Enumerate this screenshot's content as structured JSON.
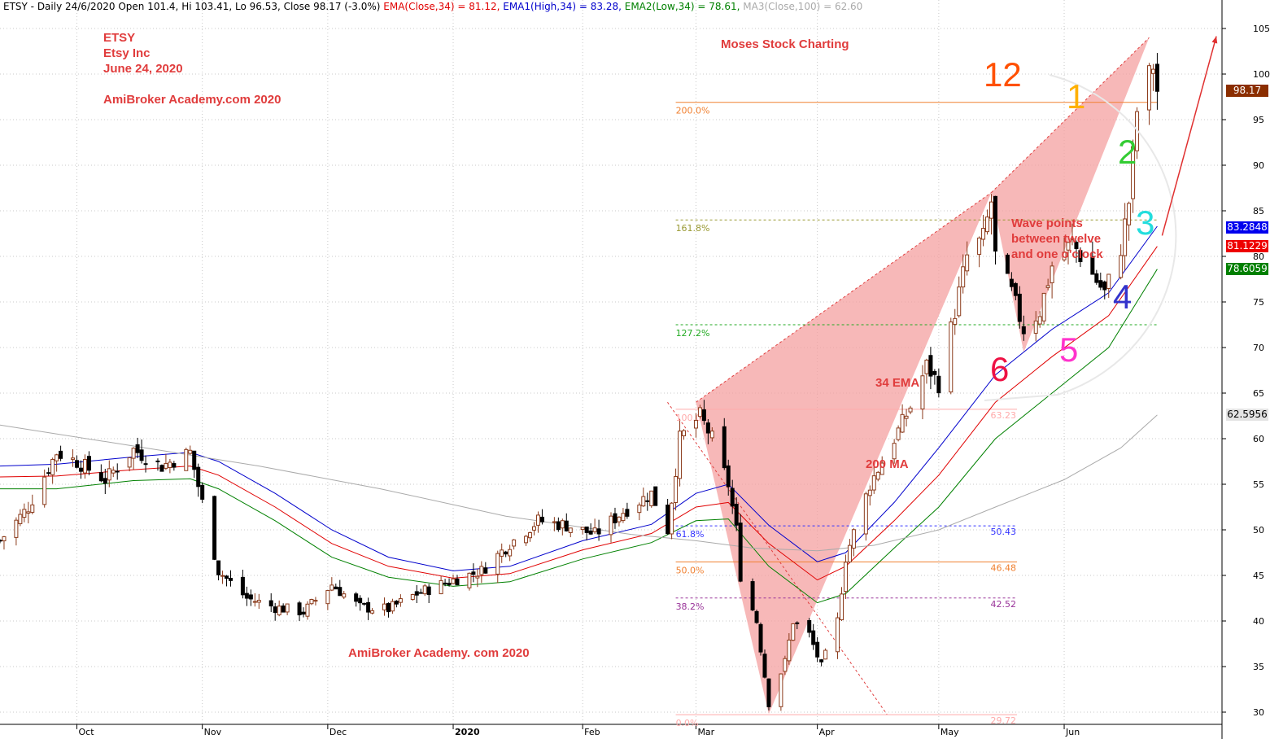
{
  "header": {
    "symbol": "ETSY - Daily 24/6/2020 Open 101.4, Hi 103.41, Lo 96.53, Close 98.17 (-3.0%)",
    "ema": "EMA(Close,34) = 81.12,",
    "ema1": "EMA1(High,34) = 83.28,",
    "ema2": "EMA2(Low,34) = 78.61,",
    "ma3": "MA3(Close,100) = 62.60",
    "colors": {
      "ema": "#e00000",
      "ema1": "#0000cc",
      "ema2": "#008000",
      "ma3": "#aaaaaa"
    }
  },
  "annotations": {
    "ticker": "ETSY",
    "company": "Etsy Inc",
    "date": "June 24, 2020",
    "site_top": "AmiBroker Academy.com  2020",
    "site_bottom": "AmiBroker Academy. com  2020",
    "watermark": "Moses Stock Charting",
    "wave_note_1": "Wave points",
    "wave_note_2": "between twelve",
    "wave_note_3": "and one o'clock",
    "ema_label": "34 EMA",
    "ma_label": "200 MA",
    "clock": [
      {
        "n": "12",
        "color": "#ff5000"
      },
      {
        "n": "1",
        "color": "#ffb000"
      },
      {
        "n": "2",
        "color": "#33cc33"
      },
      {
        "n": "3",
        "color": "#22dddd"
      },
      {
        "n": "4",
        "color": "#3333cc"
      },
      {
        "n": "5",
        "color": "#ff33cc"
      },
      {
        "n": "6",
        "color": "#ee1144"
      }
    ]
  },
  "price_tags": [
    {
      "label": "98.17",
      "bg": "#8b2e00",
      "fg": "#ffffff",
      "price": 98.17
    },
    {
      "label": "83.2848",
      "bg": "#0000ee",
      "fg": "#ffffff",
      "price": 83.28
    },
    {
      "label": "81.1229",
      "bg": "#ee0000",
      "fg": "#ffffff",
      "price": 81.12
    },
    {
      "label": "78.6059",
      "bg": "#008000",
      "fg": "#ffffff",
      "price": 78.61
    },
    {
      "label": "62.5956",
      "bg": "#e4e4e4",
      "fg": "#000000",
      "price": 62.6
    }
  ],
  "chart_data": {
    "type": "candlestick",
    "title": "",
    "xlabel": "",
    "ylabel": "",
    "ylim": [
      29.5,
      107
    ],
    "y_ticks": [
      30,
      35,
      40,
      45,
      50,
      55,
      60,
      65,
      70,
      75,
      80,
      85,
      90,
      95,
      100,
      105
    ],
    "grid": true,
    "x_axis": {
      "start": "2019-09-12",
      "end": "2020-07-10",
      "month_labels": [
        {
          "label": "Oct",
          "date": "2019-10-01"
        },
        {
          "label": "Nov",
          "date": "2019-11-01"
        },
        {
          "label": "Dec",
          "date": "2019-12-02"
        },
        {
          "label": "2020",
          "date": "2020-01-02",
          "bold": true
        },
        {
          "label": "Feb",
          "date": "2020-02-03"
        },
        {
          "label": "Mar",
          "date": "2020-03-02"
        },
        {
          "label": "Apr",
          "date": "2020-04-01"
        },
        {
          "label": "May",
          "date": "2020-05-01"
        },
        {
          "label": "Jun",
          "date": "2020-06-01"
        }
      ]
    },
    "close_path": [
      [
        "2019-09-12",
        48.8
      ],
      [
        "2019-09-19",
        52.5
      ],
      [
        "2019-09-26",
        58.5
      ],
      [
        "2019-10-01",
        57.5
      ],
      [
        "2019-10-08",
        55.5
      ],
      [
        "2019-10-15",
        58.8
      ],
      [
        "2019-10-22",
        57.0
      ],
      [
        "2019-10-29",
        58.5
      ],
      [
        "2019-11-01",
        53.0
      ],
      [
        "2019-11-05",
        45.5
      ],
      [
        "2019-11-12",
        42.5
      ],
      [
        "2019-11-19",
        41.5
      ],
      [
        "2019-11-26",
        41.0
      ],
      [
        "2019-12-03",
        44.0
      ],
      [
        "2019-12-10",
        41.5
      ],
      [
        "2019-12-17",
        41.3
      ],
      [
        "2019-12-24",
        43.0
      ],
      [
        "2020-01-02",
        44.5
      ],
      [
        "2020-01-09",
        45.5
      ],
      [
        "2020-01-16",
        48.5
      ],
      [
        "2020-01-23",
        51.0
      ],
      [
        "2020-01-30",
        50.5
      ],
      [
        "2020-02-06",
        49.5
      ],
      [
        "2020-02-13",
        52.0
      ],
      [
        "2020-02-20",
        54.0
      ],
      [
        "2020-02-24",
        50.0
      ],
      [
        "2020-02-27",
        60.0
      ],
      [
        "2020-03-03",
        62.5
      ],
      [
        "2020-03-06",
        60.0
      ],
      [
        "2020-03-10",
        55.0
      ],
      [
        "2020-03-12",
        50.0
      ],
      [
        "2020-03-13",
        45.0
      ],
      [
        "2020-03-17",
        40.0
      ],
      [
        "2020-03-19",
        34.0
      ],
      [
        "2020-03-20",
        31.0
      ],
      [
        "2020-03-24",
        35.5
      ],
      [
        "2020-03-26",
        40.0
      ],
      [
        "2020-03-30",
        38.5
      ],
      [
        "2020-04-02",
        35.0
      ],
      [
        "2020-04-06",
        40.0
      ],
      [
        "2020-04-08",
        47.0
      ],
      [
        "2020-04-14",
        55.0
      ],
      [
        "2020-04-20",
        60.0
      ],
      [
        "2020-04-24",
        63.5
      ],
      [
        "2020-04-28",
        68.0
      ],
      [
        "2020-05-01",
        66.0
      ],
      [
        "2020-05-05",
        74.0
      ],
      [
        "2020-05-08",
        80.0
      ],
      [
        "2020-05-12",
        82.0
      ],
      [
        "2020-05-14",
        86.0
      ],
      [
        "2020-05-15",
        80.0
      ],
      [
        "2020-05-19",
        76.0
      ],
      [
        "2020-05-22",
        72.0
      ],
      [
        "2020-05-26",
        74.0
      ],
      [
        "2020-05-29",
        79.0
      ],
      [
        "2020-06-03",
        81.5
      ],
      [
        "2020-06-08",
        78.0
      ],
      [
        "2020-06-11",
        76.0
      ],
      [
        "2020-06-15",
        81.0
      ],
      [
        "2020-06-17",
        86.0
      ],
      [
        "2020-06-19",
        96.0
      ],
      [
        "2020-06-23",
        101.0
      ],
      [
        "2020-06-24",
        98.17
      ]
    ],
    "series": [
      {
        "name": "EMA(Close,34)",
        "color": "#e00000",
        "points": [
          [
            "2019-09-12",
            55.8
          ],
          [
            "2019-09-26",
            55.9
          ],
          [
            "2019-10-15",
            56.6
          ],
          [
            "2019-10-29",
            57.0
          ],
          [
            "2019-11-05",
            56.0
          ],
          [
            "2019-11-19",
            52.5
          ],
          [
            "2019-12-03",
            48.5
          ],
          [
            "2019-12-17",
            46.0
          ],
          [
            "2020-01-02",
            44.7
          ],
          [
            "2020-01-16",
            45.2
          ],
          [
            "2020-02-03",
            47.8
          ],
          [
            "2020-02-20",
            49.6
          ],
          [
            "2020-03-02",
            52.5
          ],
          [
            "2020-03-10",
            53.0
          ],
          [
            "2020-03-20",
            48.5
          ],
          [
            "2020-04-01",
            44.5
          ],
          [
            "2020-04-08",
            46.0
          ],
          [
            "2020-04-20",
            51.0
          ],
          [
            "2020-05-01",
            56.0
          ],
          [
            "2020-05-15",
            64.0
          ],
          [
            "2020-05-29",
            69.0
          ],
          [
            "2020-06-12",
            73.5
          ],
          [
            "2020-06-24",
            81.1
          ]
        ]
      },
      {
        "name": "EMA1(High,34)",
        "color": "#0000cc",
        "points": [
          [
            "2019-09-12",
            57.0
          ],
          [
            "2019-09-26",
            57.2
          ],
          [
            "2019-10-15",
            58.0
          ],
          [
            "2019-10-29",
            58.5
          ],
          [
            "2019-11-05",
            57.5
          ],
          [
            "2019-11-19",
            54.0
          ],
          [
            "2019-12-03",
            50.0
          ],
          [
            "2019-12-17",
            47.0
          ],
          [
            "2020-01-02",
            45.5
          ],
          [
            "2020-01-16",
            46.0
          ],
          [
            "2020-02-03",
            48.8
          ],
          [
            "2020-02-20",
            50.6
          ],
          [
            "2020-03-02",
            54.0
          ],
          [
            "2020-03-10",
            55.0
          ],
          [
            "2020-03-20",
            50.5
          ],
          [
            "2020-04-01",
            46.5
          ],
          [
            "2020-04-08",
            47.5
          ],
          [
            "2020-04-20",
            53.0
          ],
          [
            "2020-05-01",
            59.0
          ],
          [
            "2020-05-15",
            67.0
          ],
          [
            "2020-05-29",
            72.0
          ],
          [
            "2020-06-12",
            76.0
          ],
          [
            "2020-06-24",
            83.3
          ]
        ]
      },
      {
        "name": "EMA2(Low,34)",
        "color": "#008000",
        "points": [
          [
            "2019-09-12",
            54.5
          ],
          [
            "2019-09-26",
            54.5
          ],
          [
            "2019-10-15",
            55.4
          ],
          [
            "2019-10-29",
            55.6
          ],
          [
            "2019-11-05",
            54.5
          ],
          [
            "2019-11-19",
            51.0
          ],
          [
            "2019-12-03",
            47.0
          ],
          [
            "2019-12-17",
            44.8
          ],
          [
            "2020-01-02",
            43.8
          ],
          [
            "2020-01-16",
            44.3
          ],
          [
            "2020-02-03",
            46.8
          ],
          [
            "2020-02-20",
            48.6
          ],
          [
            "2020-03-02",
            51.0
          ],
          [
            "2020-03-10",
            51.2
          ],
          [
            "2020-03-20",
            46.0
          ],
          [
            "2020-04-01",
            42.0
          ],
          [
            "2020-04-08",
            43.0
          ],
          [
            "2020-04-20",
            48.0
          ],
          [
            "2020-05-01",
            52.5
          ],
          [
            "2020-05-15",
            60.0
          ],
          [
            "2020-05-29",
            65.0
          ],
          [
            "2020-06-12",
            70.0
          ],
          [
            "2020-06-24",
            78.6
          ]
        ]
      },
      {
        "name": "MA3(Close,100)",
        "color": "#aaaaaa",
        "points": [
          [
            "2019-09-12",
            61.5
          ],
          [
            "2019-10-15",
            59.2
          ],
          [
            "2019-11-15",
            57.0
          ],
          [
            "2019-12-15",
            54.5
          ],
          [
            "2020-01-15",
            51.5
          ],
          [
            "2020-02-15",
            49.5
          ],
          [
            "2020-03-02",
            48.8
          ],
          [
            "2020-03-16",
            48.0
          ],
          [
            "2020-04-01",
            47.7
          ],
          [
            "2020-04-15",
            48.3
          ],
          [
            "2020-05-01",
            50.0
          ],
          [
            "2020-05-15",
            52.5
          ],
          [
            "2020-06-01",
            55.5
          ],
          [
            "2020-06-15",
            59.0
          ],
          [
            "2020-06-24",
            62.6
          ]
        ]
      }
    ],
    "fibonacci_levels": [
      {
        "label": "200.0%",
        "price": 96.9,
        "color": "#f08030",
        "dashed": false
      },
      {
        "label": "161.8%",
        "price": 84.0,
        "color": "#999933",
        "dashed": true
      },
      {
        "label": "127.2%",
        "price": 72.5,
        "color": "#22aa22",
        "dashed": true
      },
      {
        "label": "100.0%",
        "price": 63.23,
        "value_label": "63.23",
        "color": "#ffaaaa",
        "dashed": false
      },
      {
        "label": "61.8%",
        "price": 50.43,
        "value_label": "50.43",
        "color": "#3333ff",
        "dashed": true
      },
      {
        "label": "50.0%",
        "price": 46.48,
        "value_label": "46.48",
        "color": "#f08030",
        "dashed": false
      },
      {
        "label": "38.2%",
        "price": 42.52,
        "value_label": "42.52",
        "color": "#993399",
        "dashed": true
      },
      {
        "label": "0.0%",
        "price": 29.72,
        "value_label": "29.72",
        "color": "#ffaaaa",
        "dashed": false
      }
    ],
    "harmonic_pattern": {
      "points": [
        {
          "date": "2020-03-02",
          "price": 64.0
        },
        {
          "date": "2020-03-20",
          "price": 29.8
        },
        {
          "date": "2020-05-14",
          "price": 87.0
        },
        {
          "date": "2020-05-22",
          "price": 69.5
        },
        {
          "date": "2020-06-22",
          "price": 104.0
        }
      ],
      "fill": "#f4a0a0"
    },
    "projection_arrow": {
      "from": {
        "date": "2020-06-24",
        "price": 83.0
      },
      "to": {
        "date": "2020-07-08",
        "price": 104.5
      },
      "color": "#e03030"
    }
  }
}
